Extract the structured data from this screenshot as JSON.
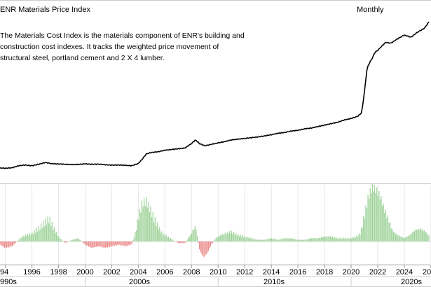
{
  "chart_data": {
    "type": "line",
    "title": "ENR Materials Price Index",
    "frequency_label": "Monthly",
    "description_lines": [
      "The Materials Cost Index is the materials component of ENR's building and",
      "construction cost indexes. It tracks the weighted price movement of",
      "structural steel, portland cement and 2 X 4 lumber."
    ],
    "x_ticks": [
      "94",
      "1996",
      "1998",
      "2000",
      "2002",
      "2004",
      "2006",
      "2008",
      "2010",
      "2012",
      "2014",
      "2016",
      "2018",
      "2020",
      "2022",
      "2024",
      "20"
    ],
    "decades": [
      "990s",
      "2000s",
      "2010s",
      "2020s"
    ],
    "xlim": [
      1993.6,
      2025.9
    ],
    "index_series": {
      "x": [
        1993.6,
        1994.0,
        1994.5,
        1995.0,
        1995.5,
        1996.0,
        1996.5,
        1997.0,
        1997.5,
        1998.0,
        1998.5,
        1999.0,
        1999.5,
        2000.0,
        2000.5,
        2001.0,
        2001.5,
        2002.0,
        2002.5,
        2003.0,
        2003.5,
        2004.0,
        2004.3,
        2004.6,
        2005.0,
        2005.5,
        2006.0,
        2006.5,
        2007.0,
        2007.5,
        2008.0,
        2008.3,
        2008.6,
        2009.0,
        2009.5,
        2010.0,
        2010.5,
        2011.0,
        2011.5,
        2012.0,
        2012.5,
        2013.0,
        2013.5,
        2014.0,
        2014.5,
        2015.0,
        2015.5,
        2016.0,
        2016.5,
        2017.0,
        2017.5,
        2018.0,
        2018.5,
        2019.0,
        2019.5,
        2020.0,
        2020.5,
        2020.8,
        2021.0,
        2021.2,
        2021.4,
        2021.6,
        2021.8,
        2022.0,
        2022.3,
        2022.6,
        2023.0,
        2023.5,
        2024.0,
        2024.5,
        2025.0,
        2025.5,
        2025.9
      ],
      "values": [
        0.5,
        0.3,
        0.6,
        2.0,
        2.5,
        2.0,
        3.0,
        4.2,
        3.4,
        3.2,
        3.0,
        2.8,
        2.9,
        3.3,
        3.0,
        3.1,
        2.7,
        2.4,
        2.5,
        2.3,
        2.0,
        3.5,
        6.5,
        10.0,
        11.0,
        11.5,
        12.5,
        13.0,
        13.5,
        14.0,
        17.0,
        19.5,
        17.0,
        15.5,
        16.5,
        17.5,
        18.3,
        19.5,
        20.0,
        20.5,
        21.0,
        21.5,
        22.2,
        23.0,
        24.0,
        24.5,
        25.5,
        26.0,
        27.0,
        27.5,
        28.5,
        29.5,
        30.5,
        31.5,
        33.0,
        34.0,
        35.5,
        38.0,
        52.0,
        68.0,
        72.0,
        75.0,
        79.0,
        80.0,
        83.0,
        85.5,
        85.0,
        88.0,
        90.5,
        89.0,
        92.5,
        95.0,
        100.0
      ],
      "ylim": [
        0,
        100
      ]
    },
    "change_bars": {
      "x": [
        1993.6,
        1994.0,
        1994.5,
        1995.0,
        1995.3,
        1995.6,
        1996.0,
        1996.5,
        1997.0,
        1997.3,
        1997.6,
        1998.0,
        1998.5,
        1999.0,
        1999.5,
        2000.0,
        2000.5,
        2001.0,
        2001.5,
        2002.0,
        2002.5,
        2003.0,
        2003.5,
        2003.8,
        2004.0,
        2004.3,
        2004.6,
        2004.9,
        2005.2,
        2005.5,
        2005.8,
        2006.2,
        2006.6,
        2007.0,
        2007.5,
        2008.0,
        2008.3,
        2008.6,
        2008.9,
        2009.2,
        2009.5,
        2009.8,
        2010.2,
        2010.6,
        2011.0,
        2011.5,
        2012.0,
        2012.5,
        2013.0,
        2013.5,
        2014.0,
        2014.5,
        2015.0,
        2015.5,
        2016.0,
        2016.5,
        2017.0,
        2017.5,
        2018.0,
        2018.5,
        2019.0,
        2019.5,
        2020.0,
        2020.4,
        2020.7,
        2021.0,
        2021.3,
        2021.6,
        2021.9,
        2022.2,
        2022.5,
        2022.8,
        2023.1,
        2023.5,
        2024.0,
        2024.4,
        2024.8,
        2025.2,
        2025.6,
        2025.9
      ],
      "values": [
        -2,
        -4,
        -3,
        1,
        3,
        4,
        5,
        8,
        12,
        14,
        9,
        3,
        -1,
        1,
        2,
        -2,
        -4,
        -3,
        -4,
        -3,
        -2,
        -3,
        -2,
        6,
        15,
        24,
        25,
        20,
        14,
        9,
        5,
        3,
        1,
        -1,
        -1,
        5,
        10,
        -5,
        -10,
        -7,
        -2,
        2,
        4,
        5,
        6,
        4,
        3,
        2,
        1,
        1,
        2,
        1,
        2,
        2,
        1,
        1,
        2,
        2,
        3,
        3,
        2,
        2,
        2,
        3,
        5,
        16,
        28,
        34,
        32,
        28,
        20,
        14,
        7,
        4,
        2,
        4,
        7,
        8,
        6,
        3
      ],
      "ylim": [
        -14,
        34
      ]
    },
    "colors": {
      "line": "#000000",
      "positive_bar": "#9fd39a",
      "negative_bar": "#eb8b8b",
      "grid": "#e6e6e6",
      "axis": "#999999"
    },
    "grid": true
  }
}
